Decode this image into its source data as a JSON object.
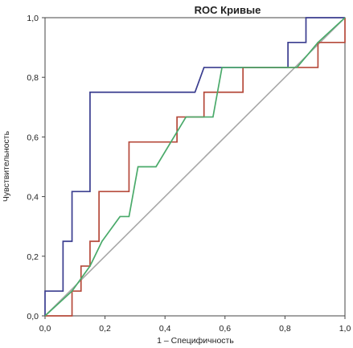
{
  "chart_data": {
    "type": "line",
    "title": "ROC Кривые",
    "xlabel": "1 – Специфичность",
    "ylabel": "Чувствительность",
    "xlim": [
      0,
      1
    ],
    "ylim": [
      0,
      1
    ],
    "x_ticks": [
      "0,0",
      "0,2",
      "0,4",
      "0,6",
      "0,8",
      "1,0"
    ],
    "y_ticks": [
      "0,0",
      "0,2",
      "0,4",
      "0,6",
      "0,8",
      "1,0"
    ],
    "grid": false,
    "series": [
      {
        "color": "#3a3d8f",
        "step": true,
        "x": [
          0,
          0,
          0.06,
          0.06,
          0.09,
          0.09,
          0.15,
          0.15,
          0.5,
          0.53,
          0.81,
          0.81,
          0.87,
          0.87,
          1.0
        ],
        "y": [
          0,
          0.083,
          0.083,
          0.25,
          0.25,
          0.417,
          0.417,
          0.75,
          0.75,
          0.833,
          0.833,
          0.917,
          0.917,
          1.0,
          1.0
        ]
      },
      {
        "color": "#b5493a",
        "step": true,
        "x": [
          0,
          0.09,
          0.09,
          0.12,
          0.12,
          0.15,
          0.15,
          0.18,
          0.18,
          0.28,
          0.28,
          0.44,
          0.44,
          0.53,
          0.53,
          0.59,
          0.59,
          0.66,
          0.66,
          0.84,
          0.84,
          0.91,
          0.91,
          1.0,
          1.0
        ],
        "y": [
          0,
          0,
          0.083,
          0.083,
          0.167,
          0.167,
          0.25,
          0.25,
          0.417,
          0.417,
          0.583,
          0.583,
          0.667,
          0.667,
          0.75,
          0.75,
          0.75,
          0.75,
          0.833,
          0.833,
          0.833,
          0.833,
          0.917,
          0.917,
          1.0
        ]
      },
      {
        "color": "#4aaa6a",
        "step": false,
        "x": [
          0,
          0.09,
          0.15,
          0.19,
          0.25,
          0.28,
          0.31,
          0.37,
          0.47,
          0.56,
          0.59,
          0.84,
          0.91,
          1.0
        ],
        "y": [
          0,
          0.083,
          0.167,
          0.25,
          0.333,
          0.333,
          0.5,
          0.5,
          0.667,
          0.667,
          0.833,
          0.833,
          0.917,
          1.0
        ]
      },
      {
        "color": "#a8a8a8",
        "step": false,
        "x": [
          0,
          1
        ],
        "y": [
          0,
          1
        ]
      }
    ]
  }
}
